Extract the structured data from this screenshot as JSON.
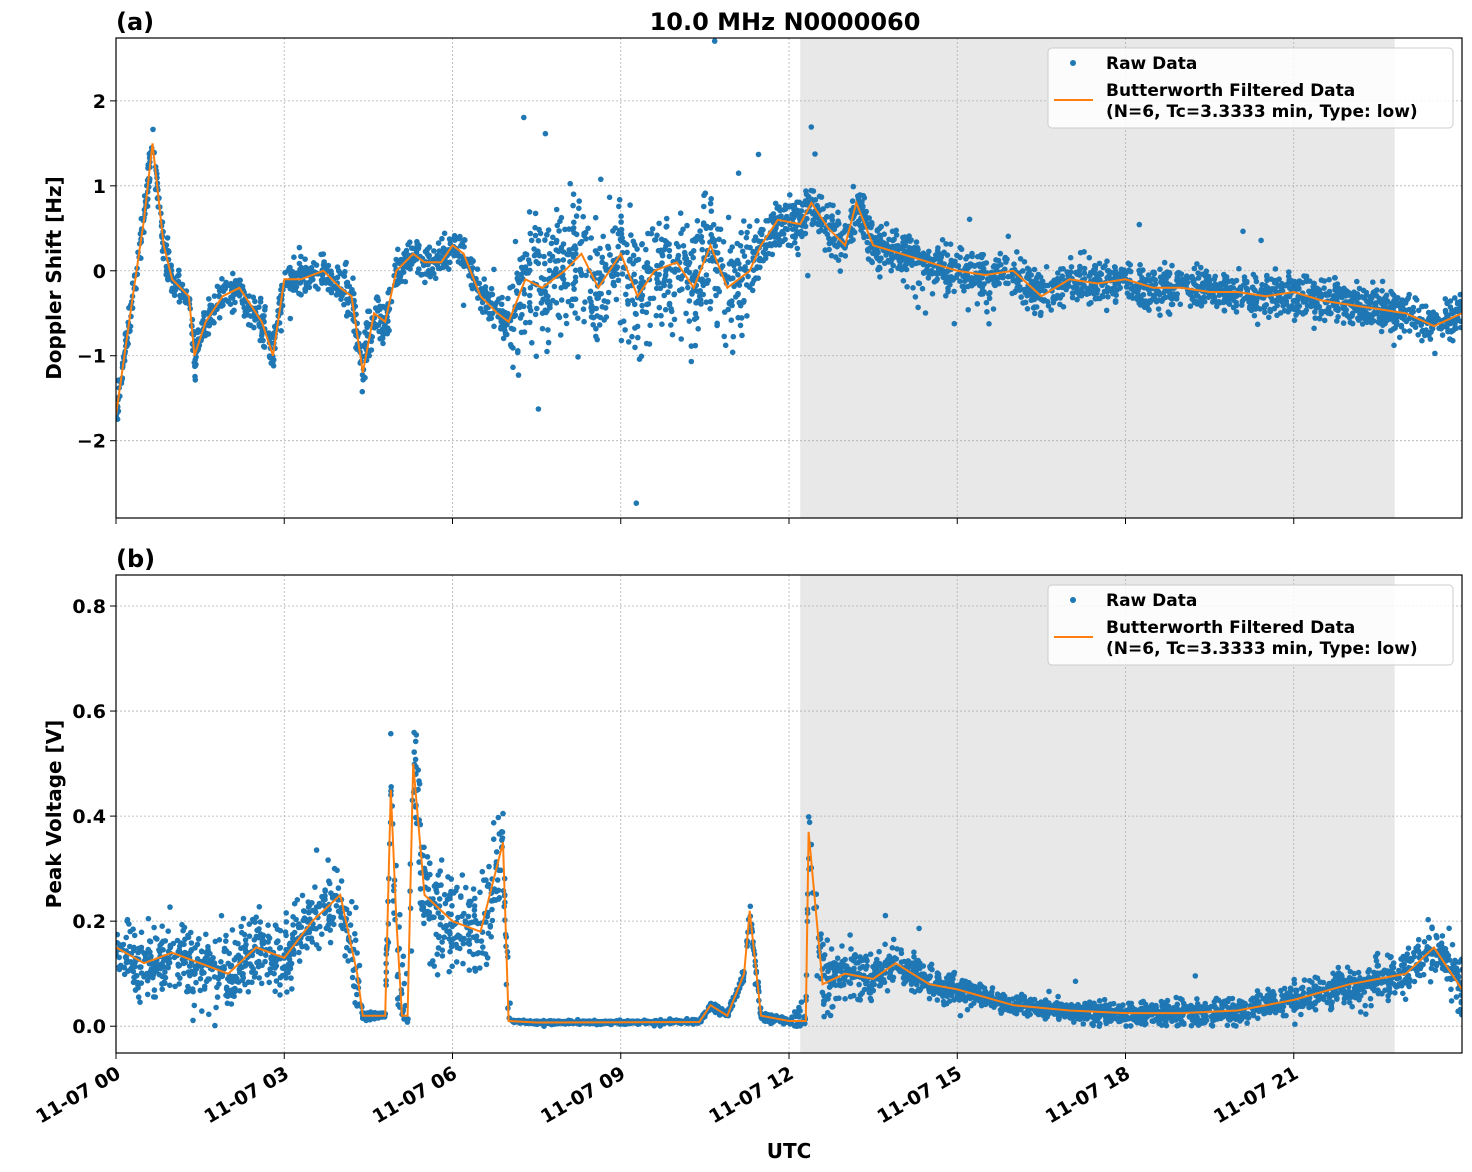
{
  "chart_data": [
    {
      "type": "scatter",
      "panel_label": "(a)",
      "title": "10.0 MHz N0000060",
      "xlabel": "",
      "ylabel": "Doppler Shift [Hz]",
      "xlim_hours": [
        0,
        24
      ],
      "ylim": [
        -2.91,
        2.74
      ],
      "yticks": [
        -2,
        -1,
        0,
        1,
        2
      ],
      "ytick_labels": [
        "−2",
        "−1",
        "0",
        "1",
        "2"
      ],
      "grid": true,
      "shaded_region_hours": [
        12.2,
        22.8
      ],
      "shaded_color": "#e8e8e8",
      "legend": {
        "placement": "top-right",
        "raw": "Raw Data",
        "filtered_line1": "Butterworth Filtered Data",
        "filtered_line2": "(N=6, Tc=3.3333 min, Type: low)"
      },
      "raw_color": "#1f77b4",
      "filtered_color": "#ff7f0e",
      "filtered": {
        "x_hours": [
          0,
          0.3,
          0.5,
          0.65,
          0.85,
          1.0,
          1.3,
          1.4,
          1.6,
          1.9,
          2.2,
          2.4,
          2.6,
          2.8,
          3.0,
          3.3,
          3.7,
          4.0,
          4.2,
          4.4,
          4.6,
          4.8,
          5.0,
          5.3,
          5.5,
          5.8,
          6.0,
          6.2,
          6.5,
          6.8,
          7.0,
          7.3,
          7.6,
          8.0,
          8.3,
          8.6,
          9.0,
          9.3,
          9.6,
          10.0,
          10.3,
          10.6,
          10.9,
          11.3,
          11.5,
          11.8,
          12.2,
          12.4,
          12.7,
          13.0,
          13.2,
          13.5,
          14.0,
          14.5,
          15.0,
          15.5,
          16.0,
          16.5,
          17.0,
          17.5,
          18.0,
          18.5,
          19.0,
          19.5,
          20.0,
          20.5,
          21.0,
          21.5,
          22.0,
          22.5,
          23.0,
          23.5,
          24
        ],
        "values": [
          -1.7,
          -0.3,
          0.6,
          1.5,
          0.3,
          -0.1,
          -0.3,
          -1.0,
          -0.6,
          -0.3,
          -0.2,
          -0.4,
          -0.6,
          -1.0,
          -0.1,
          -0.1,
          0.0,
          -0.2,
          -0.3,
          -1.2,
          -0.5,
          -0.6,
          0.0,
          0.2,
          0.1,
          0.1,
          0.3,
          0.2,
          -0.3,
          -0.5,
          -0.6,
          -0.1,
          -0.2,
          0.0,
          0.2,
          -0.2,
          0.2,
          -0.3,
          0.0,
          0.1,
          -0.2,
          0.3,
          -0.2,
          0.0,
          0.3,
          0.6,
          0.55,
          0.8,
          0.5,
          0.3,
          0.8,
          0.3,
          0.2,
          0.1,
          0.0,
          -0.05,
          0.0,
          -0.3,
          -0.1,
          -0.15,
          -0.1,
          -0.2,
          -0.2,
          -0.25,
          -0.25,
          -0.3,
          -0.25,
          -0.35,
          -0.4,
          -0.45,
          -0.5,
          -0.65,
          -0.5
        ]
      },
      "raw_spread": {
        "x_hours": [
          0,
          4,
          4.4,
          5,
          7,
          7.1,
          11,
          11.5,
          12.5,
          24
        ],
        "half_width": [
          0.3,
          0.3,
          0.6,
          0.3,
          0.3,
          1.1,
          1.0,
          0.5,
          0.4,
          0.35
        ]
      }
    },
    {
      "type": "scatter",
      "panel_label": "(b)",
      "xlabel": "UTC",
      "ylabel": "Peak Voltage [V]",
      "xlim_hours": [
        0,
        24
      ],
      "ylim": [
        -0.051,
        0.859
      ],
      "yticks": [
        0,
        0.2,
        0.4,
        0.6,
        0.8
      ],
      "ytick_labels": [
        "0.0",
        "0.2",
        "0.4",
        "0.6",
        "0.8"
      ],
      "xticks_hours": [
        0,
        3,
        6,
        9,
        12,
        15,
        18,
        21
      ],
      "xtick_labels": [
        "11-07 00",
        "11-07 03",
        "11-07 06",
        "11-07 09",
        "11-07 12",
        "11-07 15",
        "11-07 18",
        "11-07 21"
      ],
      "grid": true,
      "shaded_region_hours": [
        12.2,
        22.8
      ],
      "legend": {
        "placement": "top-right",
        "raw": "Raw Data",
        "filtered_line1": "Butterworth Filtered Data",
        "filtered_line2": "(N=6, Tc=3.3333 min, Type: low)"
      },
      "filtered": {
        "x_hours": [
          0,
          0.5,
          1.0,
          1.5,
          2.0,
          2.5,
          3.0,
          3.5,
          4.0,
          4.3,
          4.4,
          4.8,
          4.9,
          5.0,
          5.1,
          5.2,
          5.3,
          5.5,
          6.0,
          6.5,
          6.9,
          7.0,
          7.5,
          10.4,
          10.6,
          10.9,
          11.2,
          11.3,
          11.5,
          12.0,
          12.3,
          12.35,
          12.6,
          13.0,
          13.5,
          13.9,
          14.5,
          15.0,
          16.0,
          17.0,
          18.0,
          19.0,
          20.0,
          21.0,
          22.0,
          23.0,
          23.5,
          24
        ],
        "values": [
          0.15,
          0.12,
          0.14,
          0.12,
          0.1,
          0.15,
          0.13,
          0.2,
          0.25,
          0.1,
          0.02,
          0.02,
          0.45,
          0.2,
          0.02,
          0.02,
          0.5,
          0.25,
          0.2,
          0.18,
          0.35,
          0.01,
          0.007,
          0.008,
          0.04,
          0.02,
          0.1,
          0.22,
          0.02,
          0.01,
          0.01,
          0.37,
          0.08,
          0.1,
          0.09,
          0.12,
          0.08,
          0.07,
          0.04,
          0.03,
          0.025,
          0.025,
          0.03,
          0.05,
          0.08,
          0.1,
          0.15,
          0.07
        ]
      },
      "raw_spread": {
        "x_hours": [
          0,
          4.3,
          4.4,
          4.8,
          4.9,
          5.6,
          7.0,
          7.05,
          10.4,
          11.5,
          12.0,
          12.3,
          13.5,
          16,
          21,
          24
        ],
        "half_width": [
          0.09,
          0.1,
          0.01,
          0.01,
          0.2,
          0.15,
          0.12,
          0.004,
          0.006,
          0.02,
          0.006,
          0.1,
          0.06,
          0.025,
          0.04,
          0.07
        ]
      }
    }
  ]
}
